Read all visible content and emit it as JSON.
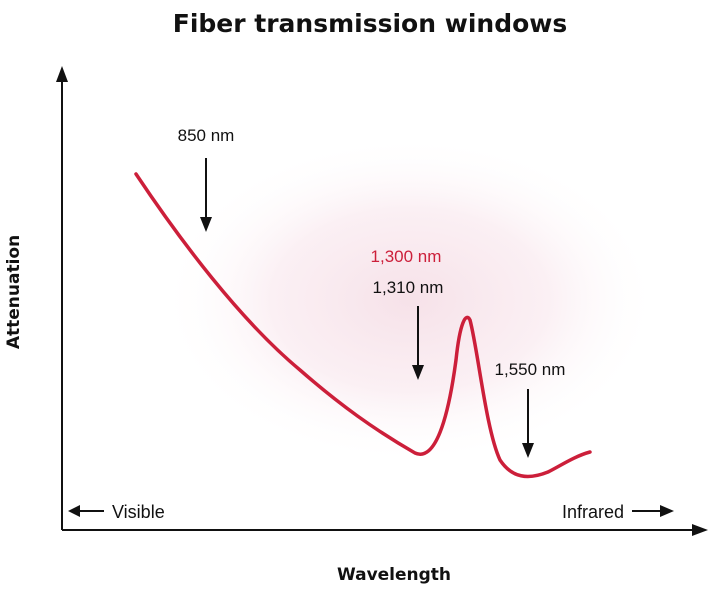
{
  "title": "Fiber transmission windows",
  "axes": {
    "y_label": "Attenuation",
    "x_label": "Wavelength"
  },
  "annotations": {
    "nm850": "850 nm",
    "nm1300": "1,300 nm",
    "nm1310": "1,310 nm",
    "nm1550": "1,550 nm"
  },
  "range_labels": {
    "left": "Visible",
    "right": "Infrared"
  },
  "colors": {
    "curve": "#cc1f3a",
    "highlight_text": "#cc1f3a",
    "glow": "#f3d9e2",
    "ink": "#111111"
  }
}
